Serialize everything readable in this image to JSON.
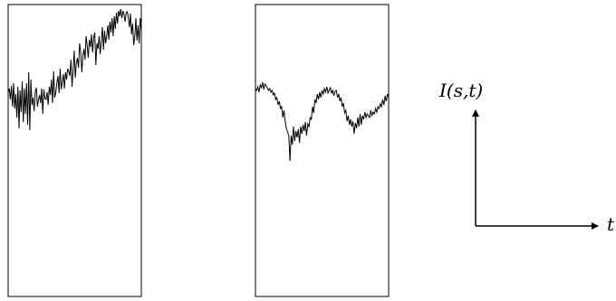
{
  "figure": {
    "line_color": "#000000",
    "background_color": "#ffffff",
    "panels": [
      {
        "name": "left-panel",
        "signal": [
          102,
          98,
          110,
          95,
          118,
          92,
          120,
          104,
          130,
          96,
          142,
          100,
          124,
          90,
          135,
          98,
          126,
          92,
          138,
          80,
          144,
          88,
          116,
          108,
          123,
          102,
          97,
          118,
          110,
          105,
          114,
          98,
          126,
          99,
          109,
          110,
          102,
          116,
          96,
          105,
          88,
          114,
          79,
          108,
          102,
          92,
          84,
          103,
          76,
          99,
          90,
          82,
          98,
          80,
          88,
          76,
          79,
          84,
          66,
          96,
          78,
          56,
          86,
          70,
          64,
          75,
          48,
          58,
          80,
          62,
          54,
          66,
          40,
          50,
          64,
          44,
          52,
          38,
          58,
          42,
          36,
          72,
          48,
          54,
          40,
          60,
          46,
          30,
          55,
          34,
          48,
          40,
          28,
          44,
          24,
          36,
          20,
          40,
          18,
          32,
          14,
          26,
          12,
          18,
          10,
          20,
          12,
          16,
          24,
          14,
          13,
          20,
          30,
          15,
          38,
          26,
          50,
          40,
          20,
          45,
          28,
          48,
          20,
          34
        ]
      },
      {
        "name": "right-panel",
        "signal": [
          98,
          100,
          96,
          102,
          94,
          97,
          91,
          99,
          93,
          95,
          97,
          100,
          98,
          102,
          100,
          105,
          103,
          110,
          108,
          116,
          112,
          120,
          118,
          130,
          122,
          134,
          142,
          146,
          150,
          178,
          150,
          160,
          140,
          156,
          145,
          152,
          143,
          158,
          140,
          148,
          138,
          145,
          135,
          150,
          137,
          140,
          130,
          132,
          118,
          125,
          110,
          114,
          104,
          110,
          102,
          108,
          100,
          104,
          98,
          102,
          96,
          103,
          100,
          97,
          103,
          100,
          106,
          101,
          100,
          108,
          104,
          112,
          108,
          118,
          114,
          125,
          122,
          134,
          128,
          138,
          132,
          140,
          134,
          148,
          136,
          142,
          130,
          140,
          126,
          138,
          128,
          132,
          124,
          130,
          126,
          128,
          130,
          122,
          128,
          124,
          126,
          120,
          124,
          118,
          120,
          115,
          118,
          110,
          116,
          106,
          112,
          104,
          108
        ]
      }
    ],
    "axes": {
      "y_label": "I(s,t)",
      "x_label": "t"
    }
  }
}
